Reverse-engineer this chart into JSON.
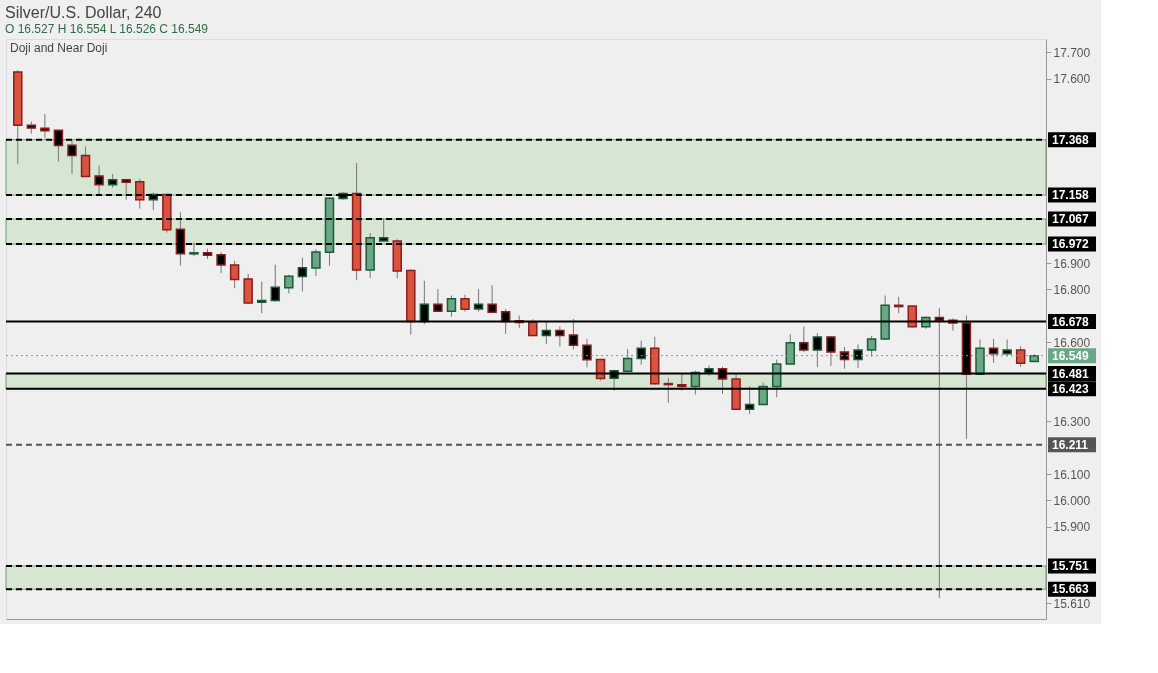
{
  "chart_data": {
    "type": "candlestick",
    "title": "Silver/U.S. Dollar, 240",
    "subtitle": "O 16.527 H 16.554 L 16.526 C 16.549",
    "annotations": [
      "Doji and Near Doji"
    ],
    "categories": [
      null,
      null,
      null,
      null,
      null,
      null,
      null,
      null,
      null,
      null,
      null,
      null,
      null,
      null,
      null,
      null,
      null,
      null,
      null,
      null,
      null,
      null,
      null,
      null,
      null,
      null,
      null,
      null,
      null,
      null,
      null,
      null,
      null,
      null,
      null,
      null,
      null,
      null,
      null,
      null,
      null,
      null,
      null,
      null,
      null,
      null,
      null,
      null,
      null,
      null,
      null,
      null,
      null,
      null,
      null,
      null,
      null,
      null,
      null,
      null,
      null,
      null,
      null,
      null,
      null,
      null,
      null,
      null,
      null,
      null,
      null,
      null,
      null,
      null,
      null,
      null
    ],
    "ohlc": [
      [
        17.625,
        17.632,
        17.277,
        17.423
      ],
      [
        17.423,
        17.437,
        17.391,
        17.412
      ],
      [
        17.411,
        17.465,
        17.373,
        17.402
      ],
      [
        17.404,
        17.405,
        17.285,
        17.346
      ],
      [
        17.347,
        17.365,
        17.238,
        17.308
      ],
      [
        17.308,
        17.343,
        17.228,
        17.228
      ],
      [
        17.23,
        17.27,
        17.156,
        17.197
      ],
      [
        17.197,
        17.238,
        17.186,
        17.216
      ],
      [
        17.216,
        17.219,
        17.14,
        17.207
      ],
      [
        17.209,
        17.22,
        17.107,
        17.14
      ],
      [
        17.14,
        17.167,
        17.101,
        17.16
      ],
      [
        17.16,
        17.162,
        17.016,
        17.026
      ],
      [
        17.028,
        17.093,
        16.891,
        16.935
      ],
      [
        16.935,
        16.978,
        16.926,
        16.939
      ],
      [
        16.939,
        16.954,
        16.916,
        16.93
      ],
      [
        16.932,
        16.942,
        16.862,
        16.893
      ],
      [
        16.893,
        16.909,
        16.805,
        16.838
      ],
      [
        16.84,
        16.859,
        16.744,
        16.749
      ],
      [
        16.751,
        16.83,
        16.71,
        16.758
      ],
      [
        16.758,
        16.894,
        16.754,
        16.808
      ],
      [
        16.806,
        16.856,
        16.785,
        16.85
      ],
      [
        16.849,
        16.921,
        16.792,
        16.882
      ],
      [
        16.881,
        16.953,
        16.851,
        16.942
      ],
      [
        16.941,
        17.149,
        16.89,
        17.146
      ],
      [
        17.145,
        17.17,
        17.14,
        17.164
      ],
      [
        17.164,
        17.28,
        16.835,
        16.874
      ],
      [
        16.874,
        17.014,
        16.844,
        16.996
      ],
      [
        16.984,
        17.07,
        16.983,
        16.996
      ],
      [
        16.984,
        16.99,
        16.842,
        16.87
      ],
      [
        16.872,
        16.876,
        16.629,
        16.678
      ],
      [
        16.678,
        16.833,
        16.668,
        16.744
      ],
      [
        16.744,
        16.802,
        16.717,
        16.717
      ],
      [
        16.717,
        16.777,
        16.696,
        16.765
      ],
      [
        16.765,
        16.78,
        16.716,
        16.725
      ],
      [
        16.726,
        16.802,
        16.716,
        16.744
      ],
      [
        16.744,
        16.816,
        16.714,
        16.714
      ],
      [
        16.715,
        16.726,
        16.632,
        16.678
      ],
      [
        16.681,
        16.701,
        16.654,
        16.675
      ],
      [
        16.676,
        16.687,
        16.622,
        16.625
      ],
      [
        16.625,
        16.677,
        16.593,
        16.644
      ],
      [
        16.644,
        16.66,
        16.583,
        16.625
      ],
      [
        16.627,
        16.688,
        16.572,
        16.588
      ],
      [
        16.588,
        16.613,
        16.505,
        16.533
      ],
      [
        16.534,
        16.534,
        16.455,
        16.462
      ],
      [
        16.463,
        16.495,
        16.416,
        16.492
      ],
      [
        16.49,
        16.574,
        16.489,
        16.538
      ],
      [
        16.538,
        16.606,
        16.515,
        16.577
      ],
      [
        16.577,
        16.621,
        16.439,
        16.442
      ],
      [
        16.443,
        16.464,
        16.37,
        16.439
      ],
      [
        16.439,
        16.479,
        16.416,
        16.432
      ],
      [
        16.432,
        16.492,
        16.402,
        16.485
      ],
      [
        16.483,
        16.511,
        16.473,
        16.499
      ],
      [
        16.499,
        16.507,
        16.404,
        16.46
      ],
      [
        16.46,
        16.481,
        16.346,
        16.346
      ],
      [
        16.346,
        16.433,
        16.327,
        16.364
      ],
      [
        16.364,
        16.447,
        16.364,
        16.432
      ],
      [
        16.432,
        16.534,
        16.391,
        16.517
      ],
      [
        16.517,
        16.63,
        16.517,
        16.598
      ],
      [
        16.598,
        16.659,
        16.563,
        16.57
      ],
      [
        16.57,
        16.634,
        16.505,
        16.62
      ],
      [
        16.62,
        16.623,
        16.51,
        16.563
      ],
      [
        16.563,
        16.581,
        16.499,
        16.534
      ],
      [
        16.534,
        16.591,
        16.502,
        16.57
      ],
      [
        16.57,
        16.624,
        16.545,
        16.612
      ],
      [
        16.612,
        16.777,
        16.609,
        16.74
      ],
      [
        16.74,
        16.772,
        16.71,
        16.735
      ],
      [
        16.737,
        16.737,
        16.655,
        16.659
      ],
      [
        16.659,
        16.698,
        16.651,
        16.694
      ],
      [
        16.694,
        16.73,
        15.63,
        16.683
      ],
      [
        16.683,
        16.69,
        16.644,
        16.673
      ],
      [
        16.673,
        16.701,
        16.233,
        16.478
      ],
      [
        16.478,
        16.61,
        16.478,
        16.577
      ],
      [
        16.577,
        16.613,
        16.522,
        16.556
      ],
      [
        16.556,
        16.61,
        16.545,
        16.57
      ],
      [
        16.57,
        16.584,
        16.506,
        16.52
      ],
      [
        16.527,
        16.554,
        16.526,
        16.549
      ]
    ],
    "colors": [
      "#d9533f",
      "#000000",
      "#000000",
      "#000000",
      "#000000",
      "#d9533f",
      "#000000",
      "#000000",
      "#000000",
      "#d9533f",
      "#000000",
      "#d9533f",
      "#000000",
      "#000000",
      "#000000",
      "#000000",
      "#d9533f",
      "#d9533f",
      "#000000",
      "#000000",
      "#6aa784",
      "#000000",
      "#6aa784",
      "#6aa784",
      "#000000",
      "#d9533f",
      "#6aa784",
      "#000000",
      "#d9533f",
      "#d9533f",
      "#000000",
      "#000000",
      "#6aa784",
      "#d9533f",
      "#000000",
      "#000000",
      "#000000",
      "#000000",
      "#d9533f",
      "#000000",
      "#000000",
      "#000000",
      "#000000",
      "#d9533f",
      "#000000",
      "#6aa784",
      "#000000",
      "#d9533f",
      "#000000",
      "#000000",
      "#6aa784",
      "#000000",
      "#000000",
      "#d9533f",
      "#000000",
      "#6aa784",
      "#6aa784",
      "#6aa784",
      "#000000",
      "#000000",
      "#000000",
      "#000000",
      "#000000",
      "#6aa784",
      "#6aa784",
      "#000000",
      "#d9533f",
      "#6aa784",
      "#000000",
      "#000000",
      "#000000",
      "#6aa784",
      "#000000",
      "#000000",
      "#d9533f",
      "#6aa784"
    ],
    "ylim": [
      15.55,
      17.75
    ],
    "yticks": [
      {
        "value": 17.7,
        "label": "17.700"
      },
      {
        "value": 17.6,
        "label": "17.600"
      },
      {
        "value": 16.9,
        "label": "16.900"
      },
      {
        "value": 16.8,
        "label": "16.800"
      },
      {
        "value": 16.6,
        "label": "16.600"
      },
      {
        "value": 16.3,
        "label": "16.300"
      },
      {
        "value": 16.1,
        "label": "16.100"
      },
      {
        "value": 16.0,
        "label": "16.000"
      },
      {
        "value": 15.9,
        "label": "15.900"
      },
      {
        "value": 15.61,
        "label": "15.610"
      }
    ],
    "tick_labels": "y",
    "grid": false,
    "bands": [
      {
        "axis": "y",
        "from": 17.158,
        "to": 17.368,
        "color": "#d5e5d0"
      },
      {
        "axis": "y",
        "from": 16.972,
        "to": 17.067,
        "color": "#d5e5d0"
      },
      {
        "axis": "y",
        "from": 16.423,
        "to": 16.481,
        "color": "#d5e5d0"
      },
      {
        "axis": "y",
        "from": 15.663,
        "to": 15.751,
        "color": "#d5e5d0"
      }
    ],
    "ref_lines": [
      {
        "axis": "y",
        "value": 17.368,
        "label": "17.368",
        "color": "#000000",
        "line_style": "dashed"
      },
      {
        "axis": "y",
        "value": 17.158,
        "label": "17.158",
        "color": "#000000",
        "line_style": "dashed"
      },
      {
        "axis": "y",
        "value": 17.067,
        "label": "17.067",
        "color": "#000000",
        "line_style": "dashed"
      },
      {
        "axis": "y",
        "value": 16.972,
        "label": "16.972",
        "color": "#000000",
        "line_style": "dashed"
      },
      {
        "axis": "y",
        "value": 16.678,
        "label": "16.678",
        "color": "#000000",
        "line_style": "solid"
      },
      {
        "axis": "y",
        "value": 16.549,
        "label": "16.549",
        "color": "#6aa784",
        "line_style": "dotted"
      },
      {
        "axis": "y",
        "value": 16.481,
        "label": "16.481",
        "color": "#000000",
        "line_style": "solid"
      },
      {
        "axis": "y",
        "value": 16.423,
        "label": "16.423",
        "color": "#000000",
        "line_style": "solid"
      },
      {
        "axis": "y",
        "value": 16.211,
        "label": "16.211",
        "color": "#555555",
        "line_style": "dashed"
      },
      {
        "axis": "y",
        "value": 15.751,
        "label": "15.751",
        "color": "#000000",
        "line_style": "dashed"
      },
      {
        "axis": "y",
        "value": 15.663,
        "label": "15.663",
        "color": "#000000",
        "line_style": "dashed"
      }
    ]
  }
}
